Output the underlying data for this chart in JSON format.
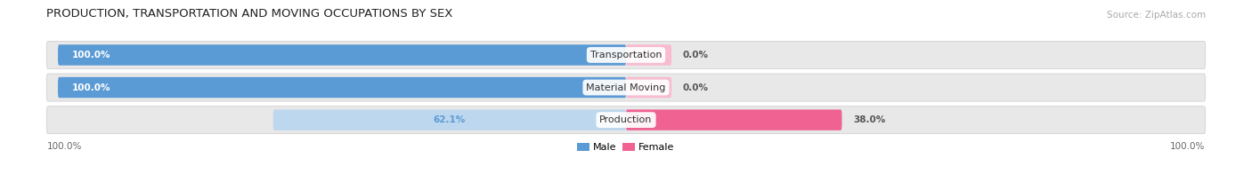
{
  "title": "PRODUCTION, TRANSPORTATION AND MOVING OCCUPATIONS BY SEX",
  "source": "Source: ZipAtlas.com",
  "categories": [
    "Transportation",
    "Material Moving",
    "Production"
  ],
  "male_values": [
    100.0,
    100.0,
    62.1
  ],
  "female_values": [
    0.0,
    0.0,
    38.0
  ],
  "male_color_strong": "#5b9bd5",
  "male_color_light": "#bdd7ee",
  "female_color_strong": "#f06292",
  "female_color_light": "#f8bbd0",
  "bar_bg_color": "#e8e8e8",
  "background_color": "#ffffff",
  "label_color_male_white": "#ffffff",
  "label_color_dark": "#555555",
  "axis_label_left": "100.0%",
  "axis_label_right": "100.0%",
  "legend_male": "Male",
  "legend_female": "Female",
  "title_fontsize": 9.5,
  "source_fontsize": 7.5,
  "bar_label_fontsize": 7.5,
  "category_label_fontsize": 8,
  "min_female_visual": 8.0
}
